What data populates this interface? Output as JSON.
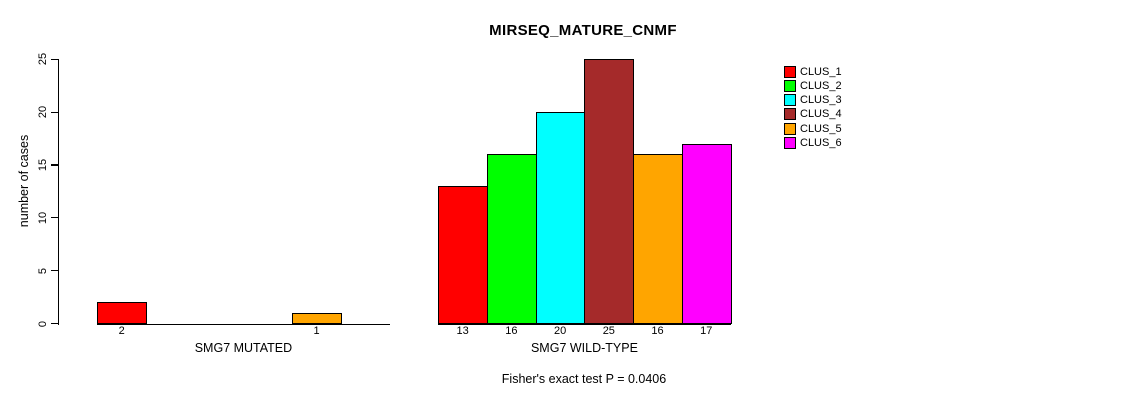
{
  "title": "MIRSEQ_MATURE_CNMF",
  "annotation": "Fisher's exact test P = 0.0406",
  "ylabel": "number of cases",
  "chart_data": {
    "type": "bar",
    "title": "MIRSEQ_MATURE_CNMF",
    "xlabel": "",
    "ylabel": "number of cases",
    "ylim": [
      0,
      25
    ],
    "yticks": [
      0,
      5,
      10,
      15,
      20,
      25
    ],
    "grid": false,
    "legend_position": "right",
    "annotation": "Fisher's exact test P = 0.0406",
    "series_names": [
      "CLUS_1",
      "CLUS_2",
      "CLUS_3",
      "CLUS_4",
      "CLUS_5",
      "CLUS_6"
    ],
    "series_colors": [
      "#FF0000",
      "#00FF00",
      "#00FFFF",
      "#A52A2A",
      "#FFA500",
      "#FF00FF"
    ],
    "groups": [
      {
        "label": "SMG7 MUTATED",
        "values": [
          2,
          0,
          0,
          0,
          1,
          0
        ]
      },
      {
        "label": "SMG7 WILD-TYPE",
        "values": [
          13,
          16,
          20,
          25,
          16,
          17
        ]
      }
    ],
    "bar_label_rule": "value shown under each drawn bar; zero-value bars not drawn"
  }
}
